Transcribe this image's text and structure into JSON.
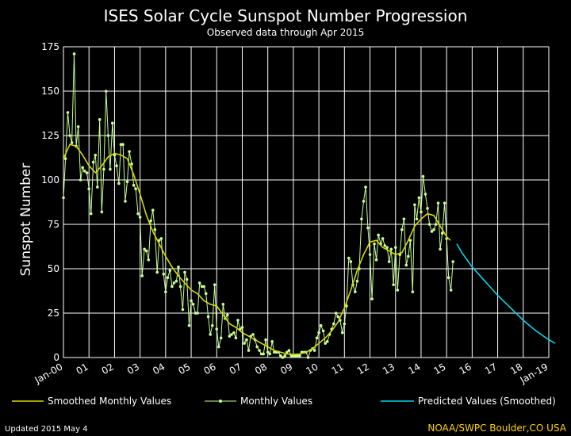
{
  "colors": {
    "background": "#000000",
    "text": "#ffffff",
    "smoothed": "#d8d800",
    "monthly": "#c8ff96",
    "predicted": "#00d8e8",
    "credit": "#ffd000"
  },
  "footer": {
    "updated": "Updated 2015 May  4",
    "credit": "NOAA/SWPC Boulder,CO USA"
  },
  "chart_data": {
    "type": "line",
    "title": "ISES Solar Cycle Sunspot Number Progression",
    "subtitle": "Observed data through Apr 2015",
    "ylabel": "Sunspot Number",
    "xlabel": "",
    "x_range": [
      2000.0,
      2019.0
    ],
    "ylim": [
      0,
      175
    ],
    "y_ticks": [
      0,
      25,
      50,
      75,
      100,
      125,
      150,
      175
    ],
    "x_ticks": [
      {
        "value": 2000,
        "label": "Jan-00"
      },
      {
        "value": 2001,
        "label": "01"
      },
      {
        "value": 2002,
        "label": "02"
      },
      {
        "value": 2003,
        "label": "03"
      },
      {
        "value": 2004,
        "label": "04"
      },
      {
        "value": 2005,
        "label": "05"
      },
      {
        "value": 2006,
        "label": "06"
      },
      {
        "value": 2007,
        "label": "07"
      },
      {
        "value": 2008,
        "label": "08"
      },
      {
        "value": 2009,
        "label": "09"
      },
      {
        "value": 2010,
        "label": "10"
      },
      {
        "value": 2011,
        "label": "11"
      },
      {
        "value": 2012,
        "label": "12"
      },
      {
        "value": 2013,
        "label": "13"
      },
      {
        "value": 2014,
        "label": "14"
      },
      {
        "value": 2015,
        "label": "15"
      },
      {
        "value": 2016,
        "label": "16"
      },
      {
        "value": 2017,
        "label": "17"
      },
      {
        "value": 2018,
        "label": "18"
      },
      {
        "value": 2019,
        "label": "Jan-19"
      }
    ],
    "grid": true,
    "legend_position": "bottom",
    "series": [
      {
        "name": "Smoothed Monthly Values",
        "style": "line",
        "points": [
          [
            2000.0,
            112
          ],
          [
            2000.25,
            120
          ],
          [
            2000.5,
            119
          ],
          [
            2000.75,
            114
          ],
          [
            2001.0,
            108
          ],
          [
            2001.25,
            104
          ],
          [
            2001.5,
            108
          ],
          [
            2001.75,
            113
          ],
          [
            2002.0,
            115
          ],
          [
            2002.25,
            114
          ],
          [
            2002.5,
            112
          ],
          [
            2002.75,
            103
          ],
          [
            2003.0,
            92
          ],
          [
            2003.25,
            80
          ],
          [
            2003.5,
            71
          ],
          [
            2003.75,
            64
          ],
          [
            2004.0,
            57
          ],
          [
            2004.25,
            51
          ],
          [
            2004.5,
            46
          ],
          [
            2004.75,
            42
          ],
          [
            2005.0,
            38
          ],
          [
            2005.25,
            36
          ],
          [
            2005.5,
            32
          ],
          [
            2005.75,
            30
          ],
          [
            2006.0,
            29
          ],
          [
            2006.25,
            24
          ],
          [
            2006.5,
            19
          ],
          [
            2006.75,
            17
          ],
          [
            2007.0,
            14
          ],
          [
            2007.25,
            12
          ],
          [
            2007.5,
            10
          ],
          [
            2007.75,
            8
          ],
          [
            2008.0,
            6
          ],
          [
            2008.25,
            4
          ],
          [
            2008.5,
            3
          ],
          [
            2008.75,
            2
          ],
          [
            2009.0,
            1.7
          ],
          [
            2009.25,
            2
          ],
          [
            2009.5,
            3
          ],
          [
            2009.75,
            5
          ],
          [
            2010.0,
            8
          ],
          [
            2010.25,
            11
          ],
          [
            2010.5,
            15
          ],
          [
            2010.75,
            20
          ],
          [
            2011.0,
            28
          ],
          [
            2011.25,
            38
          ],
          [
            2011.5,
            49
          ],
          [
            2011.75,
            58
          ],
          [
            2012.0,
            65
          ],
          [
            2012.25,
            66
          ],
          [
            2012.5,
            62
          ],
          [
            2012.75,
            60
          ],
          [
            2013.0,
            58
          ],
          [
            2013.25,
            59
          ],
          [
            2013.5,
            66
          ],
          [
            2013.75,
            74
          ],
          [
            2014.0,
            78
          ],
          [
            2014.25,
            81
          ],
          [
            2014.5,
            80
          ],
          [
            2014.75,
            74
          ],
          [
            2015.0,
            68
          ],
          [
            2015.15,
            66
          ]
        ]
      },
      {
        "name": "Monthly Values",
        "style": "line+dots",
        "points": [
          [
            2000.0,
            90
          ],
          [
            2000.08,
            112
          ],
          [
            2000.17,
            138
          ],
          [
            2000.25,
            125
          ],
          [
            2000.33,
            121
          ],
          [
            2000.42,
            171
          ],
          [
            2000.5,
            119
          ],
          [
            2000.58,
            130
          ],
          [
            2000.67,
            100
          ],
          [
            2000.75,
            107
          ],
          [
            2000.83,
            105
          ],
          [
            2000.92,
            104
          ],
          [
            2001.0,
            95
          ],
          [
            2001.08,
            81
          ],
          [
            2001.17,
            110
          ],
          [
            2001.25,
            114
          ],
          [
            2001.33,
            96
          ],
          [
            2001.42,
            134
          ],
          [
            2001.5,
            82
          ],
          [
            2001.58,
            106
          ],
          [
            2001.67,
            150
          ],
          [
            2001.75,
            125
          ],
          [
            2001.83,
            106
          ],
          [
            2001.92,
            132
          ],
          [
            2002.0,
            114
          ],
          [
            2002.08,
            108
          ],
          [
            2002.17,
            98
          ],
          [
            2002.25,
            120
          ],
          [
            2002.33,
            120
          ],
          [
            2002.42,
            88
          ],
          [
            2002.5,
            99
          ],
          [
            2002.58,
            116
          ],
          [
            2002.67,
            109
          ],
          [
            2002.75,
            97
          ],
          [
            2002.83,
            95
          ],
          [
            2002.92,
            81
          ],
          [
            2003.0,
            79
          ],
          [
            2003.08,
            46
          ],
          [
            2003.17,
            61
          ],
          [
            2003.25,
            60
          ],
          [
            2003.33,
            55
          ],
          [
            2003.42,
            77
          ],
          [
            2003.5,
            83
          ],
          [
            2003.58,
            72
          ],
          [
            2003.67,
            48
          ],
          [
            2003.75,
            66
          ],
          [
            2003.83,
            67
          ],
          [
            2003.92,
            47
          ],
          [
            2004.0,
            37
          ],
          [
            2004.08,
            45
          ],
          [
            2004.17,
            49
          ],
          [
            2004.25,
            40
          ],
          [
            2004.33,
            42
          ],
          [
            2004.42,
            43
          ],
          [
            2004.5,
            51
          ],
          [
            2004.58,
            40
          ],
          [
            2004.67,
            27
          ],
          [
            2004.75,
            48
          ],
          [
            2004.83,
            44
          ],
          [
            2004.92,
            18
          ],
          [
            2005.0,
            32
          ],
          [
            2005.08,
            30
          ],
          [
            2005.17,
            25
          ],
          [
            2005.25,
            25
          ],
          [
            2005.33,
            42
          ],
          [
            2005.42,
            40
          ],
          [
            2005.5,
            40
          ],
          [
            2005.58,
            36
          ],
          [
            2005.67,
            23
          ],
          [
            2005.75,
            13
          ],
          [
            2005.83,
            18
          ],
          [
            2005.92,
            41
          ],
          [
            2006.0,
            16
          ],
          [
            2006.08,
            6
          ],
          [
            2006.17,
            11
          ],
          [
            2006.25,
            30
          ],
          [
            2006.33,
            22
          ],
          [
            2006.42,
            24
          ],
          [
            2006.5,
            12
          ],
          [
            2006.58,
            13
          ],
          [
            2006.67,
            14
          ],
          [
            2006.75,
            11
          ],
          [
            2006.83,
            21
          ],
          [
            2006.92,
            16
          ],
          [
            2007.0,
            17
          ],
          [
            2007.08,
            8
          ],
          [
            2007.17,
            10
          ],
          [
            2007.25,
            4
          ],
          [
            2007.33,
            12
          ],
          [
            2007.42,
            13
          ],
          [
            2007.5,
            10
          ],
          [
            2007.58,
            6
          ],
          [
            2007.67,
            4
          ],
          [
            2007.75,
            2
          ],
          [
            2007.83,
            2
          ],
          [
            2007.92,
            10
          ],
          [
            2008.0,
            3
          ],
          [
            2008.08,
            2
          ],
          [
            2008.17,
            9
          ],
          [
            2008.25,
            3
          ],
          [
            2008.33,
            3
          ],
          [
            2008.42,
            3
          ],
          [
            2008.5,
            1
          ],
          [
            2008.58,
            0
          ],
          [
            2008.67,
            1
          ],
          [
            2008.75,
            3
          ],
          [
            2008.83,
            4
          ],
          [
            2008.92,
            1
          ],
          [
            2009.0,
            1
          ],
          [
            2009.08,
            1
          ],
          [
            2009.17,
            1
          ],
          [
            2009.25,
            1
          ],
          [
            2009.33,
            3
          ],
          [
            2009.42,
            3
          ],
          [
            2009.5,
            3
          ],
          [
            2009.58,
            0
          ],
          [
            2009.67,
            4
          ],
          [
            2009.75,
            5
          ],
          [
            2009.83,
            4
          ],
          [
            2009.92,
            11
          ],
          [
            2010.0,
            14
          ],
          [
            2010.08,
            18
          ],
          [
            2010.17,
            15
          ],
          [
            2010.25,
            8
          ],
          [
            2010.33,
            9
          ],
          [
            2010.42,
            13
          ],
          [
            2010.5,
            16
          ],
          [
            2010.58,
            19
          ],
          [
            2010.67,
            25
          ],
          [
            2010.75,
            23
          ],
          [
            2010.83,
            21
          ],
          [
            2010.92,
            14
          ],
          [
            2011.0,
            19
          ],
          [
            2011.08,
            29
          ],
          [
            2011.17,
            56
          ],
          [
            2011.25,
            54
          ],
          [
            2011.33,
            41
          ],
          [
            2011.42,
            37
          ],
          [
            2011.5,
            43
          ],
          [
            2011.58,
            50
          ],
          [
            2011.67,
            78
          ],
          [
            2011.75,
            88
          ],
          [
            2011.83,
            96
          ],
          [
            2011.92,
            73
          ],
          [
            2012.0,
            58
          ],
          [
            2012.08,
            33
          ],
          [
            2012.17,
            64
          ],
          [
            2012.25,
            55
          ],
          [
            2012.33,
            69
          ],
          [
            2012.42,
            64
          ],
          [
            2012.5,
            67
          ],
          [
            2012.58,
            63
          ],
          [
            2012.67,
            62
          ],
          [
            2012.75,
            54
          ],
          [
            2012.83,
            61
          ],
          [
            2012.92,
            41
          ],
          [
            2013.0,
            62
          ],
          [
            2013.08,
            38
          ],
          [
            2013.17,
            58
          ],
          [
            2013.25,
            72
          ],
          [
            2013.33,
            78
          ],
          [
            2013.42,
            52
          ],
          [
            2013.5,
            57
          ],
          [
            2013.58,
            66
          ],
          [
            2013.67,
            37
          ],
          [
            2013.75,
            86
          ],
          [
            2013.83,
            78
          ],
          [
            2013.92,
            90
          ],
          [
            2014.0,
            82
          ],
          [
            2014.08,
            102
          ],
          [
            2014.17,
            92
          ],
          [
            2014.25,
            84
          ],
          [
            2014.33,
            75
          ],
          [
            2014.42,
            71
          ],
          [
            2014.5,
            72
          ],
          [
            2014.58,
            75
          ],
          [
            2014.67,
            87
          ],
          [
            2014.75,
            61
          ],
          [
            2014.83,
            70
          ],
          [
            2014.92,
            87
          ],
          [
            2015.0,
            67
          ],
          [
            2015.08,
            45
          ],
          [
            2015.17,
            38
          ],
          [
            2015.25,
            54
          ]
        ]
      },
      {
        "name": "Predicted Values (Smoothed)",
        "style": "line",
        "points": [
          [
            2015.4,
            64
          ],
          [
            2015.6,
            59
          ],
          [
            2015.8,
            55
          ],
          [
            2016.0,
            51
          ],
          [
            2016.25,
            47
          ],
          [
            2016.5,
            43
          ],
          [
            2016.75,
            39
          ],
          [
            2017.0,
            35
          ],
          [
            2017.25,
            31.5
          ],
          [
            2017.5,
            28
          ],
          [
            2017.75,
            24.5
          ],
          [
            2018.0,
            21
          ],
          [
            2018.25,
            18
          ],
          [
            2018.5,
            15
          ],
          [
            2018.75,
            12.5
          ],
          [
            2019.0,
            10
          ],
          [
            2019.25,
            8
          ]
        ]
      }
    ]
  }
}
